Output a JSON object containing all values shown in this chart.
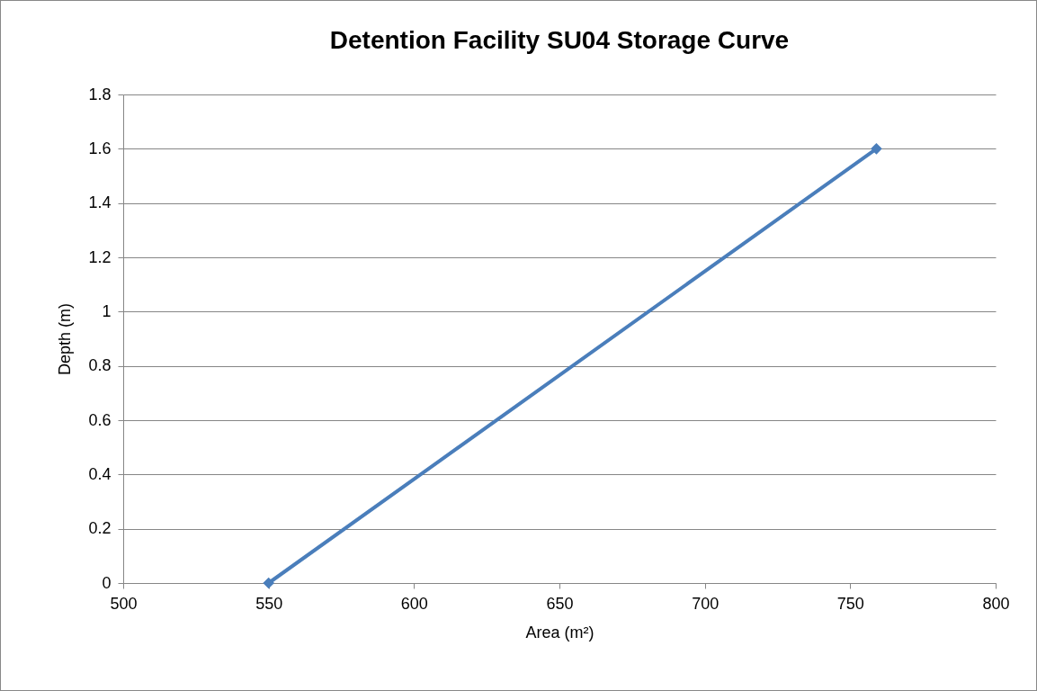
{
  "chart_data": {
    "type": "line",
    "title": "Detention Facility SU04 Storage Curve",
    "xlabel": "Area (m²)",
    "ylabel": "Depth (m)",
    "x": [
      550,
      759
    ],
    "values": [
      0,
      1.6
    ],
    "color": "#4a7ebb",
    "xlim": [
      500,
      800
    ],
    "xticks": [
      500,
      550,
      600,
      650,
      700,
      750,
      800
    ],
    "ylim": [
      0,
      1.8
    ],
    "yticks": [
      0,
      0.2,
      0.4,
      0.6,
      0.8,
      1,
      1.2,
      1.4,
      1.6,
      1.8
    ],
    "grid": "y",
    "marker": "diamond"
  }
}
